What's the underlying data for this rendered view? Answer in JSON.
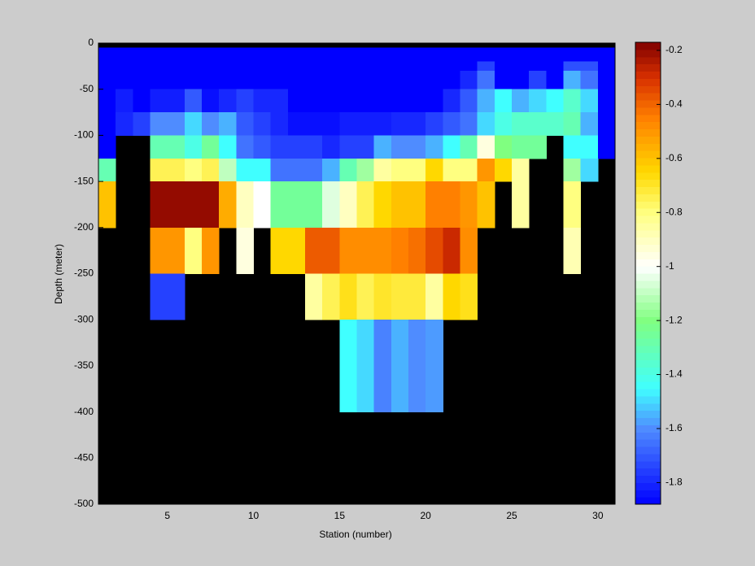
{
  "chart_data": {
    "type": "heatmap",
    "xlabel": "Station (number)",
    "ylabel": "Depth (meter)",
    "x": [
      1,
      2,
      3,
      4,
      5,
      6,
      7,
      8,
      9,
      10,
      11,
      12,
      13,
      14,
      15,
      16,
      17,
      18,
      19,
      20,
      21,
      22,
      23,
      24,
      25,
      26,
      27,
      28,
      29,
      30
    ],
    "y": [
      0,
      -5,
      -20,
      -30,
      -50,
      -75,
      -100,
      -125,
      -150,
      -200,
      -250,
      -300,
      -400
    ],
    "z": [
      [
        null,
        null,
        null,
        null,
        null,
        null,
        null,
        null,
        null,
        null,
        null,
        null,
        null,
        null,
        null,
        null,
        null,
        null,
        null,
        null,
        null,
        null,
        null,
        null,
        null,
        null,
        null,
        null,
        null,
        null
      ],
      [
        -1.88,
        -1.88,
        -1.88,
        -1.88,
        -1.88,
        -1.88,
        -1.88,
        -1.88,
        -1.88,
        -1.88,
        -1.88,
        -1.88,
        -1.88,
        -1.88,
        -1.88,
        -1.88,
        -1.88,
        -1.88,
        -1.88,
        -1.88,
        -1.88,
        -1.88,
        -1.88,
        -1.88,
        -1.88,
        -1.88,
        -1.88,
        -1.88,
        -1.88,
        -1.88
      ],
      [
        -1.88,
        -1.88,
        -1.88,
        -1.88,
        -1.88,
        -1.88,
        -1.88,
        -1.88,
        -1.88,
        -1.88,
        -1.88,
        -1.88,
        -1.88,
        -1.88,
        -1.88,
        -1.88,
        -1.88,
        -1.88,
        -1.88,
        -1.88,
        -1.88,
        -1.88,
        -1.75,
        -1.88,
        -1.88,
        -1.88,
        -1.88,
        -1.72,
        -1.72,
        -1.88
      ],
      [
        -1.88,
        -1.88,
        -1.88,
        -1.88,
        -1.88,
        -1.88,
        -1.88,
        -1.88,
        -1.88,
        -1.88,
        -1.88,
        -1.88,
        -1.88,
        -1.88,
        -1.88,
        -1.88,
        -1.88,
        -1.88,
        -1.88,
        -1.88,
        -1.88,
        -1.8,
        -1.65,
        -1.88,
        -1.88,
        -1.75,
        -1.88,
        -1.55,
        -1.65,
        -1.88
      ],
      [
        -1.88,
        -1.82,
        -1.88,
        -1.82,
        -1.82,
        -1.7,
        -1.85,
        -1.8,
        -1.75,
        -1.8,
        -1.8,
        -1.88,
        -1.88,
        -1.88,
        -1.88,
        -1.88,
        -1.88,
        -1.88,
        -1.88,
        -1.88,
        -1.8,
        -1.7,
        -1.55,
        -1.45,
        -1.55,
        -1.5,
        -1.45,
        -1.35,
        -1.5,
        -1.88
      ],
      [
        -1.88,
        -1.8,
        -1.75,
        -1.6,
        -1.6,
        -1.5,
        -1.6,
        -1.55,
        -1.7,
        -1.75,
        -1.8,
        -1.85,
        -1.85,
        -1.85,
        -1.82,
        -1.82,
        -1.82,
        -1.8,
        -1.8,
        -1.75,
        -1.7,
        -1.65,
        -1.5,
        -1.4,
        -1.35,
        -1.35,
        -1.35,
        -1.3,
        -1.55,
        -1.88
      ],
      [
        -1.88,
        null,
        null,
        -1.3,
        -1.3,
        -1.4,
        -1.25,
        -1.45,
        -1.65,
        -1.7,
        -1.75,
        -1.75,
        -1.75,
        -1.8,
        -1.75,
        -1.75,
        -1.55,
        -1.6,
        -1.6,
        -1.55,
        -1.45,
        -1.3,
        -0.95,
        -1.2,
        -1.25,
        -1.25,
        null,
        -1.45,
        -1.45,
        -1.88
      ],
      [
        -1.3,
        null,
        null,
        -0.75,
        -0.75,
        -0.8,
        -0.75,
        -1.1,
        -1.45,
        -1.45,
        -1.65,
        -1.65,
        -1.65,
        -1.55,
        -1.3,
        -1.15,
        -0.85,
        -0.8,
        -0.8,
        -0.65,
        -0.8,
        -0.8,
        -0.5,
        -0.65,
        -0.85,
        null,
        null,
        -1.15,
        -1.5,
        null
      ],
      [
        -0.6,
        null,
        null,
        -0.2,
        -0.2,
        -0.2,
        -0.2,
        -0.55,
        -0.9,
        -1.0,
        -1.25,
        -1.25,
        -1.25,
        -1.05,
        -0.9,
        -0.75,
        -0.65,
        -0.6,
        -0.6,
        -0.45,
        -0.45,
        -0.5,
        -0.6,
        null,
        -0.85,
        null,
        null,
        -0.8,
        null,
        null
      ],
      [
        null,
        null,
        null,
        -0.5,
        -0.5,
        -0.8,
        -0.5,
        null,
        -0.95,
        null,
        -0.65,
        -0.65,
        -0.38,
        -0.38,
        -0.48,
        -0.48,
        -0.48,
        -0.45,
        -0.42,
        -0.35,
        -0.28,
        -0.48,
        null,
        null,
        null,
        null,
        null,
        -0.88,
        null,
        null
      ],
      [
        null,
        null,
        null,
        -1.75,
        -1.75,
        null,
        null,
        null,
        null,
        null,
        null,
        null,
        -0.85,
        -0.75,
        -0.68,
        -0.75,
        -0.7,
        -0.72,
        -0.72,
        -0.85,
        -0.65,
        -0.68,
        null,
        null,
        null,
        null,
        null,
        null,
        null,
        null
      ],
      [
        null,
        null,
        null,
        null,
        null,
        null,
        null,
        null,
        null,
        null,
        null,
        null,
        null,
        null,
        -1.45,
        -1.5,
        -1.62,
        -1.55,
        -1.6,
        -1.58,
        null,
        null,
        null,
        null,
        null,
        null,
        null,
        null,
        null,
        null
      ],
      [
        null,
        null,
        null,
        null,
        null,
        null,
        null,
        null,
        null,
        null,
        null,
        null,
        null,
        null,
        null,
        null,
        null,
        null,
        null,
        null,
        null,
        null,
        null,
        null,
        null,
        null,
        null,
        null,
        null,
        null
      ]
    ],
    "xlim": [
      1,
      31
    ],
    "ylim": [
      -500,
      0
    ],
    "xticks": [
      5,
      10,
      15,
      20,
      25,
      30
    ],
    "yticks": [
      0,
      -50,
      -100,
      -150,
      -200,
      -250,
      -300,
      -350,
      -400,
      -450,
      -500
    ],
    "clim": [
      -1.88,
      -0.17
    ],
    "cticks": [
      -0.2,
      -0.4,
      -0.6,
      -0.8,
      -1,
      -1.2,
      -1.4,
      -1.6,
      -1.8
    ],
    "colorscale": [
      [
        -1.88,
        "#0000ff"
      ],
      [
        -1.6,
        "#4f8cff"
      ],
      [
        -1.45,
        "#40ffff"
      ],
      [
        -1.2,
        "#80ff80"
      ],
      [
        -1.0,
        "#ffffff"
      ],
      [
        -0.8,
        "#ffff80"
      ],
      [
        -0.65,
        "#ffd800"
      ],
      [
        -0.45,
        "#ff8000"
      ],
      [
        -0.3,
        "#d83000"
      ],
      [
        -0.17,
        "#800000"
      ]
    ],
    "background_color": "#000000",
    "colorbar_levels": 64
  }
}
